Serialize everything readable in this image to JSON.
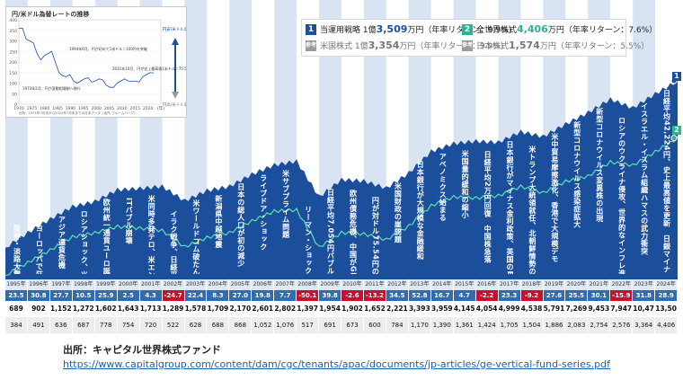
{
  "chart_data": {
    "type": "area",
    "years": [
      "1995年",
      "1996年",
      "1997年",
      "1998年",
      "1999年",
      "2000年",
      "2001年",
      "2002年",
      "2003年",
      "2004年",
      "2005年",
      "2006年",
      "2007年",
      "2008年",
      "2009年",
      "2010年",
      "2011年",
      "2012年",
      "2013年",
      "2014年",
      "2015年",
      "2016年",
      "2017年",
      "2018年",
      "2019年",
      "2020年",
      "2021年",
      "2022年",
      "2023年",
      "2024年"
    ],
    "returns": [
      "23.5",
      "30.8",
      "27.7",
      "10.5",
      "25.9",
      "2.5",
      "4.3",
      "-24.7",
      "22.4",
      "8.3",
      "27.0",
      "19.8",
      "7.7",
      "-50.1",
      "39.8",
      "-2.6",
      "-13.2",
      "34.5",
      "52.8",
      "16.7",
      "4.7",
      "-2.2",
      "23.3",
      "-9.2",
      "27.6",
      "25.5",
      "30.1",
      "-15.9",
      "31.8",
      "28.9"
    ],
    "series_a": [
      "689",
      "902",
      "1,152",
      "1,272",
      "1,602",
      "1,643",
      "1,713",
      "1,289",
      "1,578",
      "1,709",
      "2,170",
      "2,601",
      "2,802",
      "1,397",
      "1,954",
      "1,902",
      "1,652",
      "2,221",
      "3,393",
      "3,959",
      "4,145",
      "4,054",
      "4,999",
      "4,538",
      "5,791",
      "7,269",
      "9,453",
      "7,947",
      "10,478",
      "13,509"
    ],
    "series_b": [
      "384",
      "491",
      "636",
      "687",
      "778",
      "754",
      "720",
      "522",
      "628",
      "688",
      "868",
      "1,052",
      "1,076",
      "517",
      "691",
      "673",
      "600",
      "784",
      "1,170",
      "1,390",
      "1,361",
      "1,424",
      "1,705",
      "1,504",
      "1,886",
      "2,083",
      "2,754",
      "2,576",
      "3,364",
      "4,406"
    ],
    "area_values": [
      689,
      902,
      1152,
      1272,
      1602,
      1643,
      1713,
      1289,
      1578,
      1709,
      2170,
      2601,
      2802,
      1397,
      1954,
      1902,
      1652,
      2221,
      3393,
      3959,
      4145,
      4054,
      4999,
      4538,
      5791,
      7269,
      9453,
      7947,
      10478,
      13509
    ],
    "line_values": [
      384,
      491,
      636,
      687,
      778,
      754,
      720,
      522,
      628,
      688,
      868,
      1052,
      1076,
      517,
      691,
      673,
      600,
      784,
      1170,
      1390,
      1361,
      1424,
      1705,
      1504,
      1886,
      2083,
      2754,
      2576,
      3364,
      4406
    ],
    "annotations": [
      {
        "year_index": 0,
        "text": "阪神・淡路大震災　円が対ドル79円台に"
      },
      {
        "year_index": 1,
        "text": "ヨーロッパで狂牛病騒動"
      },
      {
        "year_index": 2,
        "text": "アジア通貨危機　国内で金融機関の破たん相次ぐ"
      },
      {
        "year_index": 3,
        "text": "ロシアショック、米LTCM破たん"
      },
      {
        "year_index": 4,
        "text": "欧州統一通貨ユーロ誕生"
      },
      {
        "year_index": 5,
        "text": "ITバブル崩壊"
      },
      {
        "year_index": 6,
        "text": "米同時多発テロ、米エンロン破たん"
      },
      {
        "year_index": 7,
        "text": "イラク戦争、日経平均7,607円バブル崩壊後の最安値"
      },
      {
        "year_index": 8,
        "text": "米ワールドコム破たん、米国で企業会計不信が拡大"
      },
      {
        "year_index": 9,
        "text": "新潟県中越地震"
      },
      {
        "year_index": 10,
        "text": "日本の総人口が初の減少"
      },
      {
        "year_index": 11,
        "text": "ライブドア・ショック"
      },
      {
        "year_index": 12,
        "text": "米サブプライム問題"
      },
      {
        "year_index": 13,
        "text": "リーマン・ショック"
      },
      {
        "year_index": 14,
        "text": "日経平均7,054円バブル崩壊後の最安値　ギリシャ債務危機"
      },
      {
        "year_index": 15,
        "text": "欧州債務危機、中国がGDP世界2位に"
      },
      {
        "year_index": 16,
        "text": "円が対ドル75.54円の戦後最高値、東日本大震災"
      },
      {
        "year_index": 17,
        "text": "米国財政の崖問題"
      },
      {
        "year_index": 18,
        "text": "日本銀行が大規模な金融緩和"
      },
      {
        "year_index": 19,
        "text": "アベノミクス始まる"
      },
      {
        "year_index": 20,
        "text": "米国量的緩和の縮小"
      },
      {
        "year_index": 21,
        "text": "日経平均2万円回復　中国株急落"
      },
      {
        "year_index": 22,
        "text": "日本銀行がマイナス金利政策、英国のEU離脱決定"
      },
      {
        "year_index": 23,
        "text": "米トランプ大統領就任、北朝鮮情勢の緊迫化"
      },
      {
        "year_index": 24,
        "text": "米中貿易摩擦激化、香港で大規模デモ"
      },
      {
        "year_index": 25,
        "text": "新型コロナウイルス感染症拡大"
      },
      {
        "year_index": 26,
        "text": "新型コロナウイルス変異株の出現"
      },
      {
        "year_index": 27,
        "text": "ロシアのウクライナ侵攻、世界的なインフレ進行"
      },
      {
        "year_index": 28,
        "text": "イスラエル・イスラム組織ハマスの武力衝突"
      },
      {
        "year_index": 29,
        "text": "日経平均42,224円、史上最高値を更新　日銀マイナス金利政策解除"
      }
    ]
  },
  "inset": {
    "title": "円/米ドル為替レートの推移",
    "axis_left": [
      "400",
      "350",
      "300",
      "250",
      "200",
      "150",
      "100",
      "50",
      "0"
    ],
    "axis_bottom": [
      "1970",
      "1975",
      "1980",
      "1985",
      "1990",
      "1995",
      "2000",
      "2005",
      "2010",
      "2015",
      "2020",
      "(年)"
    ],
    "note1": "1994年6月、円が初めて1米ドル＝100円を突破",
    "note2": "2011年10月、円が史上最高値1米ドル＝75.54円を記録",
    "note3": "1973年2月、円が変動相場制へ移行",
    "arrow_up": "円安/米ドル高",
    "arrow_down": "円高/米ドル安",
    "source": "出所：1971年7月末から2024年7月末までの月末データ（出所 ブルームバーグ）"
  },
  "legend": {
    "row1": {
      "badge": "1",
      "label": "当運用戦略 1億",
      "value": "3,509",
      "unit": "万円（年率リターン：9.9%）"
    },
    "row2": {
      "badge": "2",
      "label": "全世界株式",
      "value": "4,406",
      "unit": "万円（年率リターン：7.6%）"
    },
    "row3": {
      "badge": "参考",
      "label": "米国株式 1億",
      "value": "3,354",
      "unit": "万円（年率リターン：9.9%）"
    },
    "row4": {
      "badge": "参考",
      "label": "日本株式",
      "value": "1,574",
      "unit": "万円（年率リターン：5.5%）"
    }
  },
  "colors": {
    "area": "#1b4f9c",
    "line": "#5ee0b0",
    "pos": "#2f6db3",
    "neg": "#c8102e",
    "bg_a": "#d8e4f2",
    "bg_b": "#ffffff"
  },
  "side": {
    "one": "1",
    "two": "2"
  },
  "footer": {
    "title": "出所：キャピタル世界株式ファンド",
    "url": "https://www.capitalgroup.com/content/dam/cgc/tenants/apac/documents/jp-articles/ge-vertical-fund-series.pdf"
  }
}
